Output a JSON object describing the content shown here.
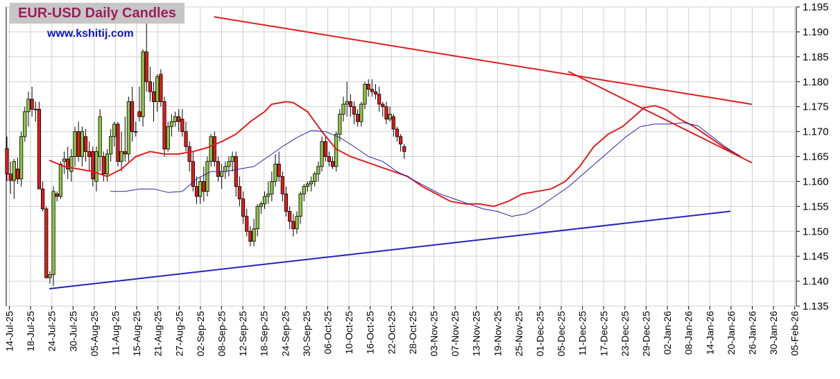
{
  "header": {
    "title": "EUR-USD Daily  Candles",
    "website": "www.kshitij.com"
  },
  "colors": {
    "up_candle": "#8cc63f",
    "down_candle": "#e21b1b",
    "ma_short": "#e21b1b",
    "ma_long": "#2222aa",
    "trendline_red": "#e21b1b",
    "trendline_blue": "#2222bb",
    "grid": "#d0d0d0"
  },
  "chart_data": {
    "type": "candlestick",
    "title": "EUR-USD Daily  Candles",
    "ylim": [
      1.135,
      1.195
    ],
    "y_ticks": [
      "1.135",
      "1.140",
      "1.145",
      "1.150",
      "1.155",
      "1.160",
      "1.165",
      "1.170",
      "1.175",
      "1.180",
      "1.185",
      "1.190",
      "1.195"
    ],
    "y_tick_values": [
      1.135,
      1.14,
      1.145,
      1.15,
      1.155,
      1.16,
      1.165,
      1.17,
      1.175,
      1.18,
      1.185,
      1.19,
      1.195
    ],
    "x_tick_labels": [
      "14-Jul-25",
      "18-Jul-25",
      "24-Jul-25",
      "30-Jul-25",
      "05-Aug-25",
      "11-Aug-25",
      "15-Aug-25",
      "21-Aug-25",
      "27-Aug-25",
      "02-Sep-25",
      "08-Sep-25",
      "12-Sep-25",
      "18-Sep-25",
      "24-Sep-25",
      "30-Sep-25",
      "06-Oct-25",
      "10-Oct-25",
      "16-Oct-25",
      "22-Oct-25",
      "28-Oct-25",
      "03-Nov-25",
      "07-Nov-25",
      "13-Nov-25",
      "19-Nov-25",
      "25-Nov-25",
      "01-Dec-25",
      "05-Dec-25",
      "11-Dec-25",
      "17-Dec-25",
      "23-Dec-25",
      "29-Dec-25",
      "02-Jan-26",
      "08-Jan-26",
      "14-Jan-26",
      "20-Jan-26",
      "26-Jan-26",
      "30-Jan-26",
      "05-Feb-26"
    ],
    "grid": true,
    "series": [
      {
        "kind": "ohlc",
        "points": [
          [
            1.1666,
            1.169,
            1.16,
            1.1615
          ],
          [
            1.1615,
            1.164,
            1.1575,
            1.1602
          ],
          [
            1.1602,
            1.1645,
            1.1565,
            1.164
          ],
          [
            1.1625,
            1.1648,
            1.1595,
            1.1605
          ],
          [
            1.1605,
            1.17,
            1.159,
            1.169
          ],
          [
            1.169,
            1.175,
            1.168,
            1.174
          ],
          [
            1.174,
            1.178,
            1.171,
            1.1765
          ],
          [
            1.1765,
            1.179,
            1.173,
            1.1745
          ],
          [
            1.1745,
            1.176,
            1.172,
            1.1745
          ],
          [
            1.1745,
            1.176,
            1.159,
            1.1585
          ],
          [
            1.1585,
            1.16,
            1.154,
            1.1545
          ],
          [
            1.1545,
            1.155,
            1.1405,
            1.1407
          ],
          [
            1.1407,
            1.142,
            1.1395,
            1.1413
          ],
          [
            1.1413,
            1.159,
            1.139,
            1.158
          ],
          [
            1.1575,
            1.158,
            1.156,
            1.157
          ],
          [
            1.157,
            1.164,
            1.1565,
            1.1635
          ],
          [
            1.164,
            1.166,
            1.1615,
            1.1645
          ],
          [
            1.1645,
            1.167,
            1.1605,
            1.1625
          ],
          [
            1.162,
            1.1665,
            1.16,
            1.165
          ],
          [
            1.165,
            1.171,
            1.163,
            1.17
          ],
          [
            1.17,
            1.172,
            1.164,
            1.165
          ],
          [
            1.165,
            1.171,
            1.163,
            1.17
          ],
          [
            1.169,
            1.1705,
            1.164,
            1.166
          ],
          [
            1.166,
            1.168,
            1.162,
            1.165
          ],
          [
            1.166,
            1.167,
            1.159,
            1.1605
          ],
          [
            1.16,
            1.167,
            1.158,
            1.166
          ],
          [
            1.165,
            1.1745,
            1.162,
            1.173
          ],
          [
            1.165,
            1.166,
            1.16,
            1.1615
          ],
          [
            1.1615,
            1.1665,
            1.16,
            1.1655
          ],
          [
            1.1655,
            1.1705,
            1.164,
            1.169
          ],
          [
            1.169,
            1.172,
            1.167,
            1.1715
          ],
          [
            1.1715,
            1.172,
            1.163,
            1.164
          ],
          [
            1.164,
            1.17,
            1.162,
            1.166
          ],
          [
            1.166,
            1.173,
            1.164,
            1.1655
          ],
          [
            1.1655,
            1.177,
            1.164,
            1.176
          ],
          [
            1.176,
            1.179,
            1.168,
            1.17
          ],
          [
            1.17,
            1.172,
            1.169,
            1.17
          ],
          [
            1.174,
            1.179,
            1.172,
            1.173
          ],
          [
            1.173,
            1.1865,
            1.171,
            1.186
          ],
          [
            1.186,
            1.192,
            1.178,
            1.18
          ],
          [
            1.18,
            1.183,
            1.176,
            1.178
          ],
          [
            1.178,
            1.18,
            1.172,
            1.176
          ],
          [
            1.176,
            1.1815,
            1.174,
            1.181
          ],
          [
            1.1815,
            1.1825,
            1.175,
            1.176
          ],
          [
            1.176,
            1.177,
            1.165,
            1.1665
          ],
          [
            1.1665,
            1.172,
            1.166,
            1.171
          ],
          [
            1.171,
            1.1735,
            1.169,
            1.172
          ],
          [
            1.172,
            1.174,
            1.171,
            1.173
          ],
          [
            1.173,
            1.1745,
            1.17,
            1.172
          ],
          [
            1.1725,
            1.1745,
            1.169,
            1.17
          ],
          [
            1.17,
            1.172,
            1.166,
            1.167
          ],
          [
            1.167,
            1.168,
            1.162,
            1.164
          ],
          [
            1.164,
            1.166,
            1.158,
            1.159
          ],
          [
            1.159,
            1.161,
            1.1555,
            1.157
          ],
          [
            1.157,
            1.161,
            1.1555,
            1.16
          ],
          [
            1.16,
            1.163,
            1.156,
            1.158
          ],
          [
            1.158,
            1.165,
            1.157,
            1.164
          ],
          [
            1.164,
            1.1695,
            1.163,
            1.169
          ],
          [
            1.169,
            1.17,
            1.163,
            1.164
          ],
          [
            1.164,
            1.165,
            1.16,
            1.161
          ],
          [
            1.161,
            1.1635,
            1.1585,
            1.162
          ],
          [
            1.162,
            1.164,
            1.1605,
            1.163
          ],
          [
            1.163,
            1.165,
            1.161,
            1.164
          ],
          [
            1.164,
            1.166,
            1.162,
            1.165
          ],
          [
            1.165,
            1.166,
            1.157,
            1.159
          ],
          [
            1.159,
            1.161,
            1.155,
            1.1565
          ],
          [
            1.1565,
            1.158,
            1.1515,
            1.153
          ],
          [
            1.153,
            1.1545,
            1.149,
            1.15
          ],
          [
            1.15,
            1.151,
            1.147,
            1.148
          ],
          [
            1.148,
            1.1525,
            1.147,
            1.1505
          ],
          [
            1.1505,
            1.1555,
            1.149,
            1.155
          ],
          [
            1.155,
            1.156,
            1.1535,
            1.1555
          ],
          [
            1.1555,
            1.158,
            1.1545,
            1.157
          ],
          [
            1.157,
            1.16,
            1.1555,
            1.1575
          ],
          [
            1.1575,
            1.162,
            1.156,
            1.16
          ],
          [
            1.16,
            1.1655,
            1.159,
            1.1635
          ],
          [
            1.1635,
            1.166,
            1.16,
            1.161
          ],
          [
            1.161,
            1.162,
            1.156,
            1.1575
          ],
          [
            1.1575,
            1.159,
            1.153,
            1.154
          ],
          [
            1.154,
            1.155,
            1.1505,
            1.152
          ],
          [
            1.152,
            1.1535,
            1.149,
            1.1505
          ],
          [
            1.1505,
            1.154,
            1.1495,
            1.153
          ],
          [
            1.153,
            1.158,
            1.1515,
            1.1575
          ],
          [
            1.1575,
            1.1595,
            1.156,
            1.159
          ],
          [
            1.159,
            1.16,
            1.158,
            1.1595
          ],
          [
            1.1595,
            1.161,
            1.158,
            1.16
          ],
          [
            1.16,
            1.162,
            1.159,
            1.1615
          ],
          [
            1.1615,
            1.164,
            1.16,
            1.163
          ],
          [
            1.163,
            1.169,
            1.162,
            1.168
          ],
          [
            1.168,
            1.169,
            1.164,
            1.165
          ],
          [
            1.165,
            1.166,
            1.163,
            1.164
          ],
          [
            1.164,
            1.165,
            1.1625,
            1.163
          ],
          [
            1.163,
            1.17,
            1.162,
            1.1695
          ],
          [
            1.1695,
            1.1745,
            1.168,
            1.1735
          ],
          [
            1.1735,
            1.177,
            1.172,
            1.1755
          ],
          [
            1.1755,
            1.18,
            1.173,
            1.176
          ],
          [
            1.176,
            1.1775,
            1.173,
            1.175
          ],
          [
            1.175,
            1.176,
            1.1715,
            1.1735
          ],
          [
            1.1735,
            1.1745,
            1.171,
            1.172
          ],
          [
            1.172,
            1.176,
            1.171,
            1.1755
          ],
          [
            1.1755,
            1.18,
            1.1745,
            1.1795
          ],
          [
            1.1795,
            1.1805,
            1.177,
            1.1785
          ],
          [
            1.1785,
            1.1805,
            1.177,
            1.178
          ],
          [
            1.178,
            1.1795,
            1.1765,
            1.1775
          ],
          [
            1.1775,
            1.179,
            1.174,
            1.1755
          ],
          [
            1.1755,
            1.176,
            1.173,
            1.175
          ],
          [
            1.175,
            1.176,
            1.1715,
            1.1725
          ],
          [
            1.1725,
            1.175,
            1.172,
            1.1735
          ],
          [
            1.173,
            1.1735,
            1.169,
            1.1705
          ],
          [
            1.1705,
            1.171,
            1.168,
            1.169
          ],
          [
            1.169,
            1.1695,
            1.166,
            1.1675
          ],
          [
            1.167,
            1.1675,
            1.1645,
            1.166
          ]
        ]
      },
      {
        "kind": "line",
        "points": [
          [
            12,
            1.1642
          ],
          [
            16,
            1.163
          ],
          [
            20,
            1.1625
          ],
          [
            24,
            1.162
          ],
          [
            28,
            1.161
          ],
          [
            32,
            1.1625
          ],
          [
            36,
            1.165
          ],
          [
            40,
            1.166
          ],
          [
            44,
            1.1655
          ],
          [
            48,
            1.1655
          ],
          [
            52,
            1.166
          ],
          [
            56,
            1.1668
          ],
          [
            60,
            1.168
          ],
          [
            64,
            1.1695
          ],
          [
            68,
            1.172
          ],
          [
            72,
            1.174
          ],
          [
            74,
            1.1755
          ],
          [
            78,
            1.176
          ],
          [
            80,
            1.1758
          ],
          [
            84,
            1.174
          ],
          [
            88,
            1.17
          ],
          [
            92,
            1.1665
          ],
          [
            96,
            1.165
          ],
          [
            100,
            1.164
          ],
          [
            104,
            1.163
          ],
          [
            108,
            1.162
          ],
          [
            112,
            1.161
          ],
          [
            116,
            1.159
          ],
          [
            120,
            1.1575
          ],
          [
            124,
            1.156
          ],
          [
            128,
            1.1555
          ],
          [
            132,
            1.1555
          ],
          [
            136,
            1.155
          ],
          [
            140,
            1.156
          ],
          [
            144,
            1.1575
          ],
          [
            148,
            1.158
          ],
          [
            152,
            1.1585
          ],
          [
            156,
            1.16
          ],
          [
            160,
            1.163
          ],
          [
            164,
            1.167
          ],
          [
            168,
            1.1695
          ],
          [
            172,
            1.171
          ],
          [
            176,
            1.1735
          ],
          [
            178,
            1.1748
          ],
          [
            181,
            1.1752
          ],
          [
            184,
            1.1745
          ],
          [
            188,
            1.1725
          ],
          [
            192,
            1.171
          ],
          [
            196,
            1.169
          ],
          [
            200,
            1.167
          ],
          [
            205,
            1.165
          ]
        ]
      },
      {
        "kind": "line",
        "points": [
          [
            29,
            1.158
          ],
          [
            33,
            1.158
          ],
          [
            37,
            1.1585
          ],
          [
            41,
            1.1585
          ],
          [
            45,
            1.1578
          ],
          [
            49,
            1.158
          ],
          [
            53,
            1.1605
          ],
          [
            57,
            1.162
          ],
          [
            61,
            1.162
          ],
          [
            65,
            1.1625
          ],
          [
            69,
            1.163
          ],
          [
            73,
            1.165
          ],
          [
            77,
            1.167
          ],
          [
            81,
            1.1688
          ],
          [
            85,
            1.1702
          ],
          [
            89,
            1.17
          ],
          [
            93,
            1.1688
          ],
          [
            97,
            1.167
          ],
          [
            101,
            1.165
          ],
          [
            105,
            1.164
          ],
          [
            109,
            1.162
          ],
          [
            113,
            1.1605
          ],
          [
            117,
            1.159
          ],
          [
            121,
            1.1575
          ],
          [
            125,
            1.1565
          ],
          [
            129,
            1.1555
          ],
          [
            133,
            1.1545
          ],
          [
            137,
            1.154
          ],
          [
            141,
            1.153
          ],
          [
            145,
            1.1535
          ],
          [
            149,
            1.155
          ],
          [
            153,
            1.157
          ],
          [
            157,
            1.159
          ],
          [
            161,
            1.1615
          ],
          [
            165,
            1.164
          ],
          [
            169,
            1.1665
          ],
          [
            173,
            1.169
          ],
          [
            177,
            1.171
          ],
          [
            181,
            1.1715
          ],
          [
            185,
            1.1715
          ],
          [
            189,
            1.1718
          ],
          [
            193,
            1.1712
          ],
          [
            197,
            1.169
          ],
          [
            201,
            1.1668
          ],
          [
            205,
            1.165
          ]
        ]
      },
      {
        "kind": "line",
        "points": [
          [
            58,
            1.193
          ],
          [
            208,
            1.1755
          ]
        ]
      },
      {
        "kind": "line",
        "points": [
          [
            157,
            1.182
          ],
          [
            208,
            1.1638
          ]
        ]
      },
      {
        "kind": "line",
        "points": [
          [
            12,
            1.1385
          ],
          [
            202,
            1.154
          ]
        ]
      }
    ]
  }
}
